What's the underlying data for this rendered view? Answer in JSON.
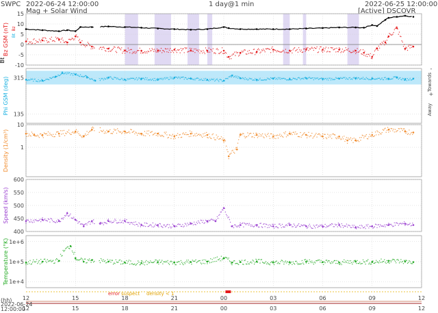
{
  "header": {
    "org": "SWPC",
    "start_time": "2022-06-24 12:00:00",
    "subtitle": "Mag + Solar Wind",
    "span": "1 day@1 min",
    "end_time": "2022-06-25 12:00:00",
    "status": "[Active] DSCOVR"
  },
  "footer": {
    "hh_label": "(hh)",
    "date_lines": [
      "2022-06-24",
      "12:00:00"
    ],
    "flag_error": "error",
    "flag_suspect": "suspect",
    "flag_density": "density < 1"
  },
  "colors": {
    "bt": "#000000",
    "bz": "#e41a1c",
    "phi": "#18b0e0",
    "phi_fill": "#bde8fa",
    "bt_shade": "#d8d0f0",
    "density": "#f08a2a",
    "speed": "#9a3fd0",
    "temperature": "#22aa22",
    "grid": "#cccccc"
  },
  "chart_data": [
    {
      "type": "line",
      "ylabel": "Bz GSM (nT)",
      "ylabel_bt": "Bt",
      "legend_items": [
        "Bz",
        "Bt"
      ],
      "ylim": [
        -10,
        15
      ],
      "yticks": [
        -10,
        -5,
        0,
        5,
        10,
        15
      ],
      "xlim_hours": [
        0,
        24
      ],
      "series": [
        {
          "name": "Bt",
          "x": [
            0,
            1,
            2,
            2.5,
            3,
            3.3,
            4,
            5,
            6,
            7,
            8,
            9,
            10,
            11,
            12,
            12.3,
            13,
            14,
            15,
            16,
            17,
            18,
            19,
            20,
            20.5,
            21,
            21.3,
            21.8,
            22,
            22.5,
            23,
            23.5
          ],
          "values": [
            7.5,
            7,
            6.5,
            7,
            6.5,
            8.5,
            8.5,
            8.8,
            8.5,
            8.2,
            7.8,
            7.5,
            7.2,
            7.5,
            8.5,
            8,
            7.5,
            7.5,
            7.5,
            7.5,
            7.8,
            8,
            8.3,
            8.3,
            8.2,
            9.5,
            9,
            12,
            13,
            13.5,
            14,
            13.5
          ]
        },
        {
          "name": "Bz",
          "x": [
            0,
            1,
            2,
            2.5,
            3,
            3.3,
            4,
            5,
            6,
            7,
            8,
            9,
            10,
            11,
            12,
            12.3,
            13,
            14,
            15,
            16,
            17,
            18,
            19,
            20,
            20.5,
            21,
            21.3,
            21.8,
            22,
            22.5,
            23,
            23.5
          ],
          "values": [
            1.5,
            2,
            2.5,
            1,
            4,
            1,
            -1,
            -2,
            -3,
            -3,
            -3,
            -2.5,
            -3,
            -3,
            -3,
            -6,
            -4,
            -3.5,
            -2.5,
            -3,
            -2.5,
            -2.5,
            -2.5,
            -3,
            -4,
            -6,
            -2,
            1,
            4,
            8,
            -2,
            -1
          ]
        }
      ],
      "shaded_intervals": [
        [
          6.0,
          6.8
        ],
        [
          7.8,
          8.8
        ],
        [
          9.8,
          10.5
        ],
        [
          11.0,
          11.3
        ],
        [
          15.6,
          16.0
        ],
        [
          16.8,
          17.0
        ],
        [
          19.5,
          20.2
        ]
      ]
    },
    {
      "type": "scatter",
      "ylabel": "Phi GSM (deg)",
      "right_label_top": "Towards",
      "right_label_bottom": "Away",
      "right_sign_top": "-",
      "right_sign_bottom": "+",
      "ylim": [
        90,
        360
      ],
      "yticks": [
        135,
        315
      ],
      "series": [
        {
          "name": "Phi",
          "x": [
            0,
            1,
            1.8,
            2.2,
            3,
            3.7,
            4.2,
            5,
            6,
            7,
            8,
            9,
            10,
            11,
            12,
            12.5,
            13,
            14,
            15,
            16,
            17,
            18,
            19,
            20,
            21,
            22,
            22.5,
            23,
            23.5
          ],
          "values": [
            305,
            300,
            320,
            338,
            330,
            318,
            300,
            315,
            305,
            310,
            305,
            315,
            310,
            305,
            300,
            325,
            312,
            305,
            310,
            308,
            312,
            308,
            310,
            312,
            310,
            310,
            315,
            305,
            310
          ]
        }
      ]
    },
    {
      "type": "scatter",
      "ylabel": "Density (1/cm³)",
      "yscale": "log",
      "ylim": [
        0.05,
        10
      ],
      "yticks": [
        1,
        10
      ],
      "series": [
        {
          "name": "Density",
          "x": [
            0,
            0.5,
            1,
            2,
            3,
            3.5,
            4,
            5,
            6,
            7,
            8,
            9,
            10,
            11,
            12,
            12.3,
            12.8,
            13,
            14,
            15,
            16,
            17,
            18,
            19,
            19.5,
            20,
            21,
            22,
            23,
            23.5
          ],
          "values": [
            4,
            3.5,
            3.5,
            4,
            5,
            3,
            6,
            5,
            5,
            4,
            4,
            3,
            4,
            3.5,
            2,
            0.4,
            0.8,
            3.5,
            3.5,
            3,
            4,
            3.5,
            3,
            3,
            2,
            2,
            3.5,
            6,
            5,
            4.5
          ]
        }
      ]
    },
    {
      "type": "scatter",
      "ylabel": "Speed (km/s)",
      "ylim": [
        400,
        600
      ],
      "yticks": [
        400,
        450,
        500,
        550,
        600
      ],
      "series": [
        {
          "name": "Speed",
          "x": [
            0,
            1,
            2,
            2.5,
            3,
            3.5,
            4,
            4.5,
            5,
            6,
            7,
            8,
            9,
            10,
            11,
            11.5,
            12,
            12.5,
            13,
            14,
            15,
            16,
            17,
            18,
            19,
            20,
            21,
            22,
            23,
            23.5
          ],
          "values": [
            440,
            445,
            440,
            470,
            445,
            420,
            440,
            430,
            440,
            440,
            425,
            425,
            420,
            430,
            440,
            440,
            490,
            420,
            425,
            425,
            420,
            425,
            420,
            420,
            425,
            415,
            420,
            425,
            430,
            425
          ]
        }
      ]
    },
    {
      "type": "scatter",
      "ylabel": "Temperature (°K)",
      "yscale": "log",
      "ylim": [
        5000,
        2000000
      ],
      "yticks": [
        10000,
        100000,
        1000000
      ],
      "ytick_labels": [
        "1e+4",
        "1e+5",
        "1e+6"
      ],
      "xlabel": "(hh)",
      "xtick_labels": [
        "12",
        "15",
        "18",
        "21",
        "00",
        "03",
        "06",
        "09",
        "12"
      ],
      "series": [
        {
          "name": "Temperature",
          "x": [
            0,
            1,
            2,
            2.7,
            3,
            3.5,
            4,
            5,
            6,
            7,
            8,
            9,
            10,
            11,
            12,
            12.5,
            13,
            14,
            15,
            16,
            17,
            18,
            19,
            20,
            21,
            22,
            23,
            23.5
          ],
          "values": [
            90000,
            100000,
            110000,
            600000,
            150000,
            100000,
            120000,
            100000,
            90000,
            85000,
            95000,
            90000,
            95000,
            100000,
            150000,
            90000,
            95000,
            100000,
            90000,
            90000,
            100000,
            95000,
            90000,
            100000,
            95000,
            110000,
            100000,
            95000
          ]
        }
      ]
    }
  ]
}
